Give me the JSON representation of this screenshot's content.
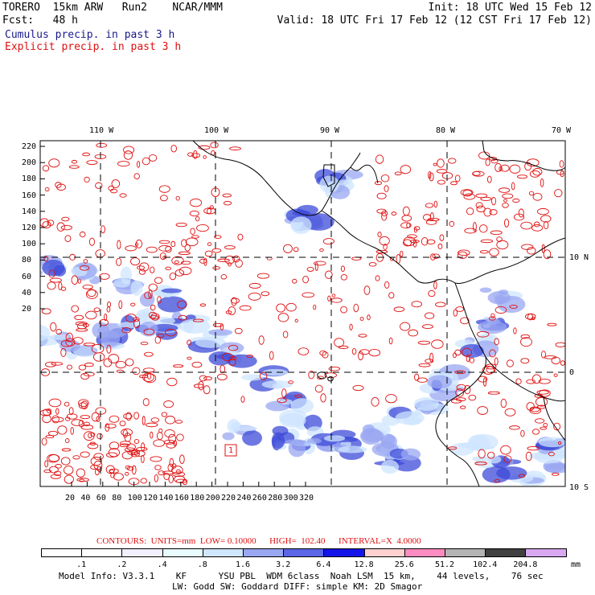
{
  "header": {
    "line1_left": "TORERO  15km ARW   Run2    NCAR/MMM",
    "line1_right": "Init: 18 UTC Wed 15 Feb 12",
    "line2_left": "Fcst:   48 h",
    "line2_right": "Valid: 18 UTC Fri 17 Feb 12 (12 CST Fri 17 Feb 12)",
    "line3": "Cumulus precip. in past 3 h",
    "line4": "Explicit precip. in past 3 h"
  },
  "map": {
    "lon_labels": [
      "110 W",
      "100 W",
      "90 W",
      "80 W",
      "70 W"
    ],
    "lat_labels": [
      "10 N",
      "0",
      "10 S"
    ],
    "y_ticks": [
      "220",
      "200",
      "180",
      "160",
      "140",
      "120",
      "100",
      "80",
      "60",
      "40",
      "20"
    ],
    "x_ticks": [
      "20",
      "40",
      "60",
      "80",
      "100",
      "120",
      "140",
      "160",
      "180",
      "200",
      "220",
      "240",
      "260",
      "280",
      "300",
      "320"
    ],
    "box_label": "1",
    "colors": {
      "cumulus": "#3d4bd8",
      "explicit": "#e01010",
      "coast": "#000000"
    }
  },
  "contours": {
    "label": "CONTOURS:  UNITS=mm  LOW= 0.10000      HIGH=  102.40      INTERVAL=X  4.0000"
  },
  "colorbar": {
    "labels": [
      ".1",
      ".2",
      ".4",
      ".8",
      "1.6",
      "3.2",
      "6.4",
      "12.8",
      "25.6",
      "51.2",
      "102.4",
      "204.8"
    ],
    "units": "mm",
    "colors": [
      "#ffffff",
      "#ffffff",
      "#f0f0ff",
      "#e8fbff",
      "#cfe6ff",
      "#9aa7f2",
      "#5b67e6",
      "#1414e8",
      "#ffd0d0",
      "#ff8cc0",
      "#b4b4b4",
      "#404040",
      "#d8a8f0"
    ]
  },
  "footer": {
    "line1": "Model Info: V3.3.1    KF      YSU PBL  WDM 6class  Noah LSM  15 km,    44 levels,    76 sec",
    "line2": "LW: Godd SW: Goddard DIFF: simple KM: 2D Smagor"
  }
}
